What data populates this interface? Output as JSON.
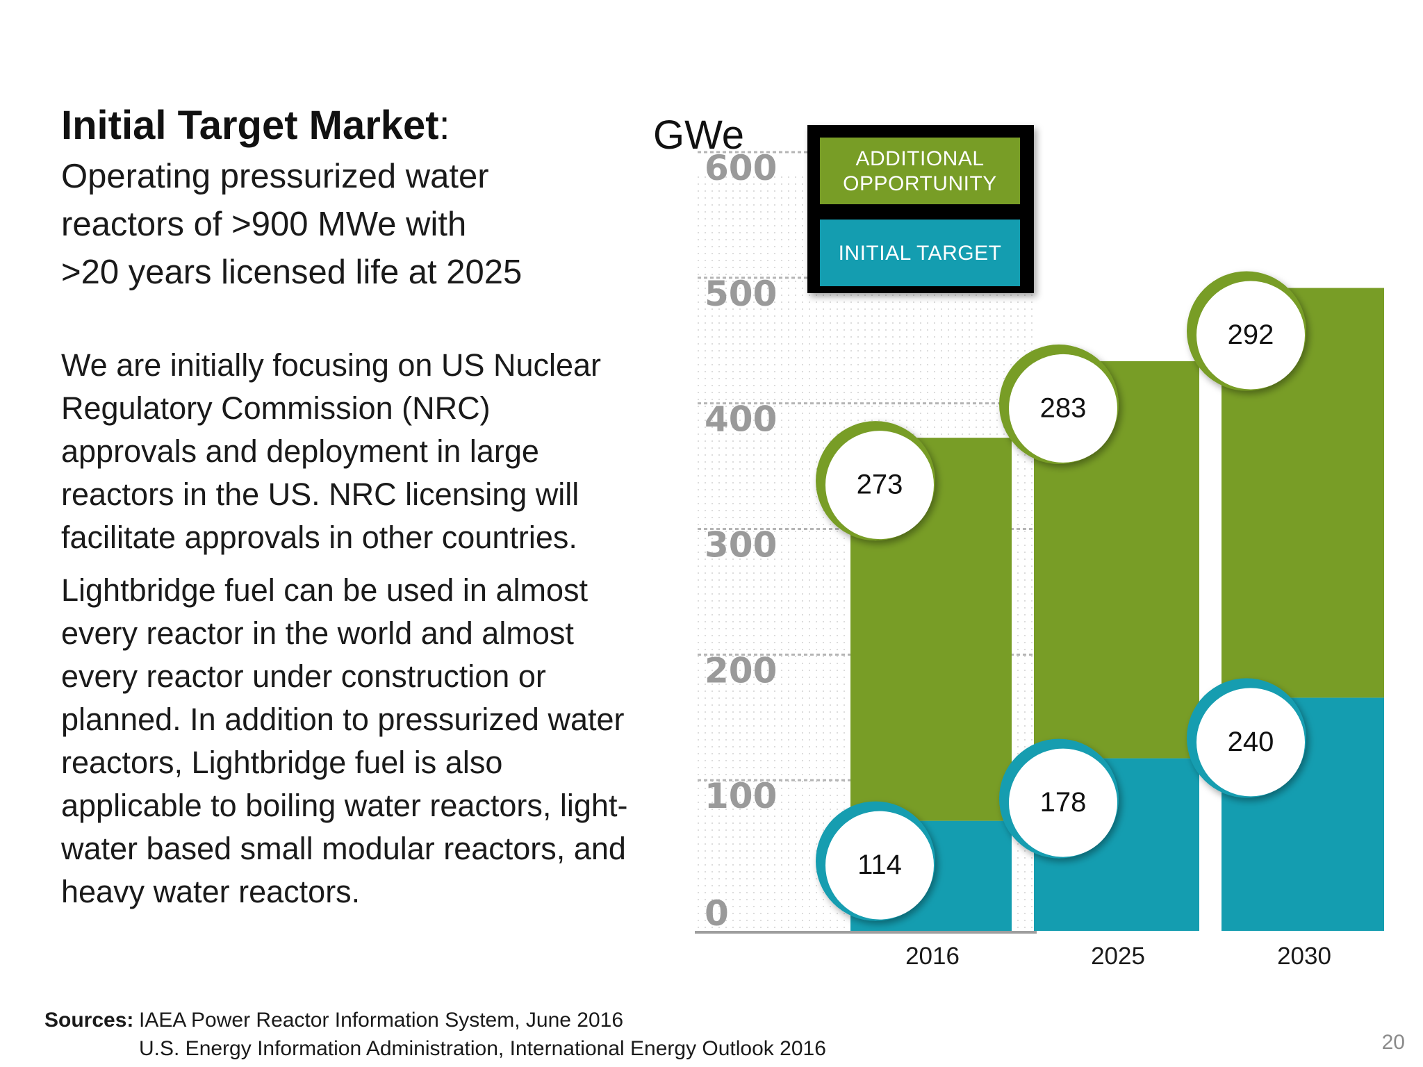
{
  "heading": {
    "title": "Initial Target Market",
    "colon": ":",
    "subtitle_lines": [
      "Operating pressurized water",
      "reactors of >900 MWe with",
      ">20 years licensed life at 2025"
    ]
  },
  "paragraphs": [
    "We are initially focusing on US Nuclear Regulatory Commission (NRC) approvals and deployment in large reactors in the US.  NRC licensing will facilitate approvals in other countries.",
    "Lightbridge fuel can be used in almost every reactor in the world and almost every reactor under construction or planned.  In addition to pressurized water reactors, Lightbridge fuel is also applicable to boiling water reactors, light-water based small modular reactors, and heavy water reactors."
  ],
  "sources": {
    "label": "Sources:",
    "lines": [
      "IAEA Power Reactor Information System, June 2016",
      "U.S. Energy Information Administration, International Energy Outlook 2016"
    ]
  },
  "page_number": "20",
  "colors": {
    "initial_target": "#149DB0",
    "additional_opportunity": "#789D26",
    "legend_frame": "#000000",
    "axis_tick": "#9a9a9a"
  },
  "chart_data": {
    "type": "bar",
    "stacked": true,
    "unit_label": "GWe",
    "title": "",
    "xlabel": "",
    "ylabel": "GWe",
    "categories": [
      "2016",
      "2025",
      "2030"
    ],
    "ylim": [
      0,
      600
    ],
    "yticks": [
      "0",
      "100",
      "200",
      "300",
      "400",
      "500",
      "600"
    ],
    "grid": "dotted",
    "legend_position": "top-center",
    "series": [
      {
        "name": "INITIAL TARGET",
        "values": [
          114,
          178,
          240
        ]
      },
      {
        "name": "ADDITIONAL OPPORTUNITY",
        "values": [
          273,
          283,
          292
        ]
      }
    ],
    "legend": {
      "additional_lines": [
        "ADDITIONAL",
        "OPPORTUNITY"
      ],
      "initial_text": "INITIAL TARGET"
    },
    "data_labels": {
      "initial": [
        "114",
        "178",
        "240"
      ],
      "additional": [
        "273",
        "283",
        "292"
      ]
    }
  }
}
